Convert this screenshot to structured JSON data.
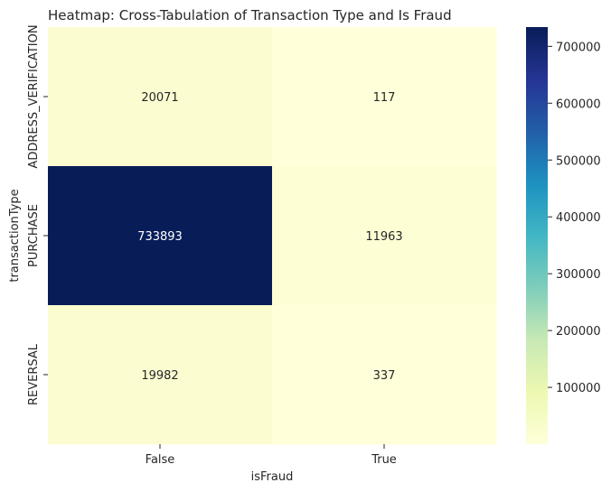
{
  "chart_data": {
    "type": "heatmap",
    "title": "Heatmap: Cross-Tabulation of Transaction Type and Is Fraud",
    "xlabel": "isFraud",
    "ylabel": "transactionType",
    "x_categories": [
      "False",
      "True"
    ],
    "y_categories": [
      "ADDRESS_VERIFICATION",
      "PURCHASE",
      "REVERSAL"
    ],
    "values": [
      [
        20071,
        117
      ],
      [
        733893,
        11963
      ],
      [
        19982,
        337
      ]
    ],
    "colormap": "YlGnBu",
    "colorbar": {
      "range": [
        117,
        733893
      ],
      "ticks": [
        100000,
        200000,
        300000,
        400000,
        500000,
        600000,
        700000
      ],
      "tick_labels": [
        "100000",
        "200000",
        "300000",
        "400000",
        "500000",
        "600000",
        "700000"
      ]
    }
  }
}
